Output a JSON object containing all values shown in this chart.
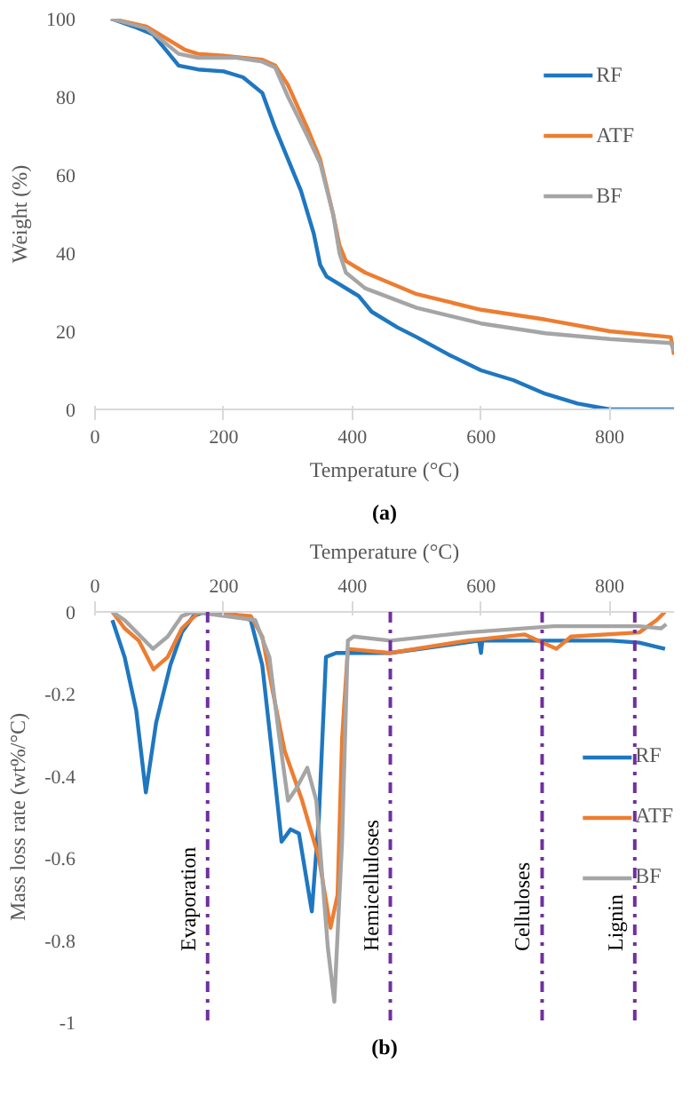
{
  "chart_data": [
    {
      "type": "line",
      "xlabel": "Temperature (°C)",
      "ylabel": "Weight (%)",
      "annotations": [
        "(a)"
      ],
      "xlim": [
        0,
        900
      ],
      "ylim": [
        0,
        100
      ],
      "xticks": [
        0,
        200,
        400,
        600,
        800
      ],
      "yticks": [
        0,
        20,
        40,
        60,
        80,
        100
      ],
      "grid": false,
      "legend": "top right",
      "marker": "none",
      "line_style": "solid",
      "series": [
        {
          "name": "RF",
          "color": "#1f77c0",
          "x": [
            25,
            60,
            90,
            110,
            130,
            160,
            200,
            230,
            260,
            280,
            300,
            320,
            340,
            350,
            360,
            380,
            400,
            410,
            430,
            470,
            500,
            550,
            600,
            650,
            700,
            750,
            800,
            900
          ],
          "values": [
            100,
            98,
            96,
            92,
            88,
            87,
            86.5,
            85,
            81,
            72,
            64,
            56,
            45,
            37,
            34,
            32,
            30,
            29,
            25,
            21,
            18.5,
            14,
            10,
            7.5,
            4,
            1.5,
            0,
            0
          ]
        },
        {
          "name": "ATF",
          "color": "#ed7d31",
          "x": [
            25,
            80,
            100,
            140,
            160,
            200,
            260,
            280,
            300,
            330,
            350,
            370,
            380,
            390,
            420,
            500,
            600,
            700,
            800,
            895,
            900
          ],
          "values": [
            100,
            98,
            96,
            92,
            91,
            90.5,
            89.5,
            88,
            83,
            72,
            64,
            50,
            42,
            38,
            35,
            29.5,
            25.5,
            23,
            20,
            18.5,
            14
          ]
        },
        {
          "name": "BF",
          "color": "#a5a5a5",
          "x": [
            25,
            80,
            100,
            130,
            160,
            220,
            260,
            280,
            300,
            330,
            350,
            370,
            380,
            390,
            420,
            500,
            600,
            700,
            800,
            895,
            900
          ],
          "values": [
            100,
            97.5,
            95,
            91,
            90,
            90,
            89,
            87.5,
            80,
            70,
            63,
            50,
            40,
            35,
            31,
            26,
            22,
            19.5,
            18,
            17,
            15
          ]
        }
      ]
    },
    {
      "type": "line",
      "xlabel": "Temperature (°C)",
      "ylabel": "Mass loss rate (wt%/°C)",
      "annotations": [
        "(b)"
      ],
      "xlim": [
        0,
        900
      ],
      "ylim": [
        -1,
        0
      ],
      "xticks": [
        0,
        200,
        400,
        600,
        800
      ],
      "yticks": [
        {
          "value": -1,
          "label": "-1"
        },
        -0.8,
        -0.6,
        -0.4,
        -0.2,
        0
      ],
      "grid": false,
      "legend": "right",
      "marker": "none",
      "line_style": "solid",
      "ref_lines": [
        {
          "axis": "x",
          "value": 175,
          "label": "Evaporation",
          "color": "#7030a0",
          "line_style": "dashdot"
        },
        {
          "axis": "x",
          "value": 459,
          "label": "Hemicelluloses",
          "color": "#7030a0",
          "line_style": "dashdot"
        },
        {
          "axis": "x",
          "value": 695,
          "label": "Celluloses",
          "color": "#7030a0",
          "line_style": "dashdot"
        },
        {
          "axis": "x",
          "value": 839,
          "label": "Lignin",
          "color": "#7030a0",
          "line_style": "dashdot"
        }
      ],
      "series": [
        {
          "name": "RF",
          "color": "#1f77c0",
          "x": [
            27,
            46,
            64,
            79,
            95,
            117,
            135,
            153,
            171,
            206,
            242,
            260,
            277,
            290,
            304,
            317,
            337,
            348,
            359,
            375,
            402,
            459,
            597,
            600,
            602,
            713,
            802,
            846,
            886
          ],
          "values": [
            -0.02,
            -0.11,
            -0.24,
            -0.44,
            -0.27,
            -0.13,
            -0.05,
            -0.01,
            0,
            0,
            -0.02,
            -0.13,
            -0.37,
            -0.56,
            -0.53,
            -0.54,
            -0.73,
            -0.5,
            -0.11,
            -0.1,
            -0.1,
            -0.1,
            -0.07,
            -0.1,
            -0.07,
            -0.07,
            -0.07,
            -0.075,
            -0.09
          ]
        },
        {
          "name": "ATF",
          "color": "#ed7d31",
          "x": [
            27,
            46,
            68,
            91,
            113,
            135,
            162,
            242,
            260,
            277,
            295,
            322,
            348,
            366,
            377,
            384,
            393,
            459,
            579,
            668,
            717,
            740,
            846,
            873,
            886
          ],
          "values": [
            0,
            -0.04,
            -0.07,
            -0.14,
            -0.11,
            -0.04,
            0,
            -0.01,
            -0.06,
            -0.2,
            -0.34,
            -0.46,
            -0.6,
            -0.77,
            -0.69,
            -0.31,
            -0.09,
            -0.1,
            -0.07,
            -0.055,
            -0.09,
            -0.06,
            -0.05,
            -0.02,
            0
          ]
        },
        {
          "name": "BF",
          "color": "#a5a5a5",
          "x": [
            27,
            46,
            90,
            113,
            135,
            153,
            249,
            271,
            286,
            300,
            313,
            330,
            344,
            362,
            372,
            384,
            393,
            402,
            459,
            579,
            713,
            846,
            880,
            888
          ],
          "values": [
            0,
            -0.02,
            -0.09,
            -0.06,
            -0.01,
            0,
            -0.02,
            -0.11,
            -0.3,
            -0.46,
            -0.43,
            -0.38,
            -0.46,
            -0.82,
            -0.95,
            -0.56,
            -0.07,
            -0.06,
            -0.07,
            -0.05,
            -0.035,
            -0.035,
            -0.04,
            -0.03
          ]
        }
      ]
    }
  ]
}
